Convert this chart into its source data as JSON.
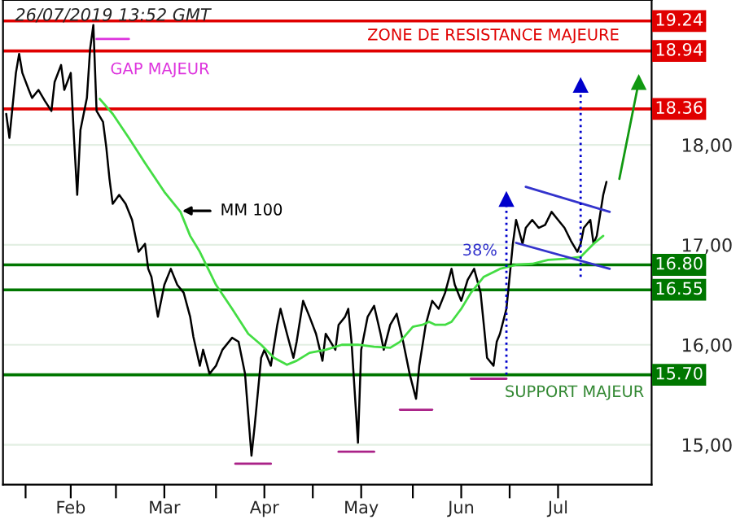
{
  "chart_data": {
    "type": "line",
    "xlim": [
      "2019-01-25",
      "2019-08-14"
    ],
    "ylim": [
      14.6,
      19.45
    ],
    "xticks": [
      {
        "value": "2019-02-01",
        "label": null
      },
      {
        "value": "2019-02-15",
        "label": "Feb"
      },
      {
        "value": "2019-03-01",
        "label": null
      },
      {
        "value": "2019-03-16",
        "label": "Mar"
      },
      {
        "value": "2019-04-01",
        "label": null
      },
      {
        "value": "2019-04-16",
        "label": "Apr"
      },
      {
        "value": "2019-05-01",
        "label": null
      },
      {
        "value": "2019-05-16",
        "label": "May"
      },
      {
        "value": "2019-06-01",
        "label": null
      },
      {
        "value": "2019-06-16",
        "label": "Jun"
      },
      {
        "value": "2019-07-01",
        "label": null
      },
      {
        "value": "2019-07-16",
        "label": "Jul"
      }
    ],
    "yticks": [
      {
        "value": 15,
        "label": "15,00"
      },
      {
        "value": 16,
        "label": "16,00"
      },
      {
        "value": 17,
        "label": "17,00"
      },
      {
        "value": 18,
        "label": "18,00"
      }
    ],
    "grid": "y",
    "series": [
      {
        "color": "#000000",
        "x": [
          "2019-01-26",
          "2019-01-27",
          "2019-01-29",
          "2019-01-30",
          "2019-01-31",
          "2019-02-02",
          "2019-02-03",
          "2019-02-05",
          "2019-02-07",
          "2019-02-09",
          "2019-02-10",
          "2019-02-12",
          "2019-02-13",
          "2019-02-15",
          "2019-02-16",
          "2019-02-17",
          "2019-02-18",
          "2019-02-20",
          "2019-02-21",
          "2019-02-22",
          "2019-02-23",
          "2019-02-25",
          "2019-02-26",
          "2019-02-27",
          "2019-02-28",
          "2019-03-02",
          "2019-03-04",
          "2019-03-06",
          "2019-03-08",
          "2019-03-10",
          "2019-03-11",
          "2019-03-12",
          "2019-03-14",
          "2019-03-16",
          "2019-03-18",
          "2019-03-20",
          "2019-03-22",
          "2019-03-24",
          "2019-03-25",
          "2019-03-27",
          "2019-03-28",
          "2019-03-30",
          "2019-04-01",
          "2019-04-03",
          "2019-04-06",
          "2019-04-08",
          "2019-04-10",
          "2019-04-12",
          "2019-04-13",
          "2019-04-15",
          "2019-04-16",
          "2019-04-18",
          "2019-04-20",
          "2019-04-21",
          "2019-04-23",
          "2019-04-25",
          "2019-04-26",
          "2019-04-28",
          "2019-04-30",
          "2019-05-02",
          "2019-05-04",
          "2019-05-05",
          "2019-05-08",
          "2019-05-09",
          "2019-05-11",
          "2019-05-12",
          "2019-05-13",
          "2019-05-15",
          "2019-05-16",
          "2019-05-18",
          "2019-05-20",
          "2019-05-22",
          "2019-05-23",
          "2019-05-25",
          "2019-05-27",
          "2019-05-29",
          "2019-05-31",
          "2019-06-02",
          "2019-06-03",
          "2019-06-05",
          "2019-06-07",
          "2019-06-09",
          "2019-06-11",
          "2019-06-13",
          "2019-06-14",
          "2019-06-16",
          "2019-06-18",
          "2019-06-20",
          "2019-06-22",
          "2019-06-23",
          "2019-06-24",
          "2019-06-26",
          "2019-06-27",
          "2019-06-28",
          "2019-06-30",
          "2019-07-01",
          "2019-07-02",
          "2019-07-03",
          "2019-07-05",
          "2019-07-06",
          "2019-07-08",
          "2019-07-10",
          "2019-07-12",
          "2019-07-14",
          "2019-07-16",
          "2019-07-18",
          "2019-07-20",
          "2019-07-22",
          "2019-07-23",
          "2019-07-24",
          "2019-07-26",
          "2019-07-27",
          "2019-07-28",
          "2019-07-30",
          "2019-07-31"
        ],
        "values": [
          18.31,
          18.07,
          18.72,
          18.91,
          18.72,
          18.55,
          18.47,
          18.55,
          18.44,
          18.34,
          18.63,
          18.8,
          18.55,
          18.72,
          18.07,
          17.5,
          18.15,
          18.47,
          18.96,
          19.2,
          18.34,
          18.23,
          17.98,
          17.66,
          17.41,
          17.5,
          17.41,
          17.25,
          16.93,
          17.01,
          16.76,
          16.68,
          16.28,
          16.6,
          16.76,
          16.6,
          16.52,
          16.28,
          16.08,
          15.79,
          15.95,
          15.71,
          15.79,
          15.95,
          16.07,
          16.03,
          15.71,
          14.89,
          15.19,
          15.87,
          15.95,
          15.79,
          16.2,
          16.36,
          16.11,
          15.87,
          16.03,
          16.44,
          16.28,
          16.11,
          15.84,
          16.11,
          15.95,
          16.2,
          16.28,
          16.36,
          16.03,
          15.02,
          15.95,
          16.28,
          16.39,
          16.11,
          15.95,
          16.2,
          16.31,
          16.03,
          15.71,
          15.46,
          15.79,
          16.2,
          16.44,
          16.36,
          16.52,
          16.76,
          16.6,
          16.44,
          16.65,
          16.76,
          16.52,
          16.2,
          15.87,
          15.79,
          16.03,
          16.11,
          16.36,
          16.68,
          17.01,
          17.25,
          17.01,
          17.17,
          17.25,
          17.17,
          17.2,
          17.33,
          17.25,
          17.17,
          17.04,
          16.93,
          17.01,
          17.17,
          17.25,
          17.01,
          17.09,
          17.5,
          17.63
        ]
      },
      {
        "color": "#44dd44",
        "x": [
          "2019-02-24",
          "2019-02-28",
          "2019-03-05",
          "2019-03-10",
          "2019-03-16",
          "2019-03-21",
          "2019-03-24",
          "2019-03-27",
          "2019-04-01",
          "2019-04-06",
          "2019-04-11",
          "2019-04-15",
          "2019-04-19",
          "2019-04-23",
          "2019-04-26",
          "2019-04-30",
          "2019-05-05",
          "2019-05-10",
          "2019-05-15",
          "2019-05-20",
          "2019-05-25",
          "2019-05-28",
          "2019-06-01",
          "2019-06-04",
          "2019-06-06",
          "2019-06-08",
          "2019-06-11",
          "2019-06-13",
          "2019-06-16",
          "2019-06-19",
          "2019-06-23",
          "2019-06-28",
          "2019-07-03",
          "2019-07-08",
          "2019-07-13",
          "2019-07-18",
          "2019-07-23",
          "2019-07-27",
          "2019-07-30"
        ],
        "values": [
          18.46,
          18.31,
          18.07,
          17.82,
          17.53,
          17.33,
          17.09,
          16.93,
          16.6,
          16.36,
          16.11,
          16.0,
          15.87,
          15.8,
          15.84,
          15.92,
          15.95,
          16.0,
          16.0,
          15.98,
          15.97,
          16.03,
          16.18,
          16.2,
          16.23,
          16.2,
          16.2,
          16.23,
          16.36,
          16.52,
          16.68,
          16.76,
          16.8,
          16.81,
          16.85,
          16.86,
          16.88,
          17.01,
          17.09
        ]
      },
      {
        "color": "#3333cc",
        "x": [
          "2019-07-06",
          "2019-08-01"
        ],
        "values": [
          17.58,
          17.33
        ]
      },
      {
        "color": "#3333cc",
        "x": [
          "2019-07-03",
          "2019-08-01"
        ],
        "values": [
          17.02,
          16.76
        ]
      },
      {
        "color": "#0000cc",
        "line_style": "dotted",
        "marker": "triangle",
        "x": [
          "2019-06-30",
          "2019-06-30"
        ],
        "values": [
          15.7,
          17.46
        ]
      },
      {
        "color": "#0000cc",
        "line_style": "dotted",
        "marker": "triangle",
        "x": [
          "2019-07-23",
          "2019-07-23"
        ],
        "values": [
          16.68,
          18.6
        ]
      },
      {
        "color": "#119911",
        "marker": "triangle",
        "x": [
          "2019-08-04",
          "2019-08-10"
        ],
        "values": [
          17.66,
          18.63
        ]
      },
      {
        "color": "#dd33dd",
        "x": [
          "2019-02-23",
          "2019-03-05"
        ],
        "values": [
          19.06,
          19.06
        ]
      },
      {
        "color": "#aa2288",
        "x": [
          "2019-04-07",
          "2019-04-18"
        ],
        "values": [
          14.81,
          14.81
        ]
      },
      {
        "color": "#aa2288",
        "x": [
          "2019-05-09",
          "2019-05-20"
        ],
        "values": [
          14.93,
          14.93
        ]
      },
      {
        "color": "#aa2288",
        "x": [
          "2019-05-28",
          "2019-06-07"
        ],
        "values": [
          15.35,
          15.35
        ]
      },
      {
        "color": "#aa2288",
        "x": [
          "2019-06-19",
          "2019-06-30"
        ],
        "values": [
          15.66,
          15.66
        ]
      }
    ],
    "ref_lines": [
      {
        "axis": "y",
        "value": 19.24,
        "label": "19.24",
        "color": "#e00000"
      },
      {
        "axis": "y",
        "value": 18.94,
        "label": "18.94",
        "color": "#e00000"
      },
      {
        "axis": "y",
        "value": 18.36,
        "label": "18.36",
        "color": "#e00000"
      },
      {
        "axis": "y",
        "value": 16.8,
        "label": "16.80",
        "color": "#007700"
      },
      {
        "axis": "y",
        "value": 16.55,
        "label": "16.55",
        "color": "#007700"
      },
      {
        "axis": "y",
        "value": 15.7,
        "label": "15.70",
        "color": "#007700"
      }
    ],
    "annotations": [
      "26/07/2019 13:52 GMT",
      "ZONE DE RESISTANCE MAJEURE",
      "GAP MAJEUR",
      "MM 100",
      "SUPPORT MAJEUR",
      "38%"
    ]
  }
}
